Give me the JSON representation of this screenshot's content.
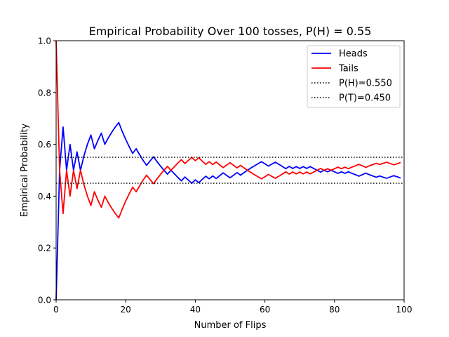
{
  "chart_data": {
    "type": "line",
    "title": "Empirical Probability Over 100 tosses, P(H) = 0.55",
    "xlabel": "Number of Flips",
    "ylabel": "Empirical Probability",
    "xlim": [
      0,
      100
    ],
    "ylim": [
      0.0,
      1.0
    ],
    "xticks": [
      "0",
      "20",
      "40",
      "60",
      "80",
      "100"
    ],
    "yticks": [
      "0.0",
      "0.2",
      "0.4",
      "0.6",
      "0.8",
      "1.0"
    ],
    "grid": false,
    "legend_position": "top-right",
    "series": [
      {
        "name": "Heads",
        "color": "#0000ff",
        "style": "solid",
        "x": [
          0,
          1,
          2,
          3,
          4,
          5,
          6,
          7,
          8,
          9,
          10,
          11,
          12,
          13,
          14,
          15,
          16,
          17,
          18,
          19,
          20,
          21,
          22,
          23,
          24,
          25,
          26,
          27,
          28,
          29,
          30,
          31,
          32,
          33,
          34,
          35,
          36,
          37,
          38,
          39,
          40,
          41,
          42,
          43,
          44,
          45,
          46,
          47,
          48,
          49,
          50,
          51,
          52,
          53,
          54,
          55,
          56,
          57,
          58,
          59,
          60,
          61,
          62,
          63,
          64,
          65,
          66,
          67,
          68,
          69,
          70,
          71,
          72,
          73,
          74,
          75,
          76,
          77,
          78,
          79,
          80,
          81,
          82,
          83,
          84,
          85,
          86,
          87,
          88,
          89,
          90,
          91,
          92,
          93,
          94,
          95,
          96,
          97,
          98,
          99
        ],
        "values": [
          0.0,
          0.5,
          0.667,
          0.5,
          0.6,
          0.5,
          0.571,
          0.5,
          0.556,
          0.6,
          0.636,
          0.583,
          0.615,
          0.643,
          0.6,
          0.625,
          0.647,
          0.667,
          0.684,
          0.65,
          0.619,
          0.591,
          0.565,
          0.583,
          0.56,
          0.538,
          0.519,
          0.536,
          0.552,
          0.533,
          0.516,
          0.5,
          0.485,
          0.5,
          0.486,
          0.472,
          0.459,
          0.474,
          0.462,
          0.45,
          0.463,
          0.452,
          0.465,
          0.477,
          0.467,
          0.478,
          0.468,
          0.479,
          0.49,
          0.48,
          0.471,
          0.481,
          0.491,
          0.481,
          0.491,
          0.5,
          0.509,
          0.517,
          0.525,
          0.533,
          0.525,
          0.516,
          0.524,
          0.531,
          0.523,
          0.515,
          0.506,
          0.515,
          0.507,
          0.514,
          0.507,
          0.514,
          0.507,
          0.514,
          0.507,
          0.5,
          0.493,
          0.5,
          0.494,
          0.5,
          0.494,
          0.488,
          0.494,
          0.488,
          0.494,
          0.488,
          0.483,
          0.477,
          0.483,
          0.489,
          0.483,
          0.478,
          0.473,
          0.478,
          0.473,
          0.469,
          0.474,
          0.479,
          0.475,
          0.47
        ]
      },
      {
        "name": "Tails",
        "color": "#ff0000",
        "style": "solid",
        "x": [
          0,
          1,
          2,
          3,
          4,
          5,
          6,
          7,
          8,
          9,
          10,
          11,
          12,
          13,
          14,
          15,
          16,
          17,
          18,
          19,
          20,
          21,
          22,
          23,
          24,
          25,
          26,
          27,
          28,
          29,
          30,
          31,
          32,
          33,
          34,
          35,
          36,
          37,
          38,
          39,
          40,
          41,
          42,
          43,
          44,
          45,
          46,
          47,
          48,
          49,
          50,
          51,
          52,
          53,
          54,
          55,
          56,
          57,
          58,
          59,
          60,
          61,
          62,
          63,
          64,
          65,
          66,
          67,
          68,
          69,
          70,
          71,
          72,
          73,
          74,
          75,
          76,
          77,
          78,
          79,
          80,
          81,
          82,
          83,
          84,
          85,
          86,
          87,
          88,
          89,
          90,
          91,
          92,
          93,
          94,
          95,
          96,
          97,
          98,
          99
        ],
        "values": [
          1.0,
          0.5,
          0.333,
          0.5,
          0.4,
          0.5,
          0.429,
          0.5,
          0.444,
          0.4,
          0.364,
          0.417,
          0.385,
          0.357,
          0.4,
          0.375,
          0.353,
          0.333,
          0.316,
          0.35,
          0.381,
          0.409,
          0.435,
          0.417,
          0.44,
          0.462,
          0.481,
          0.464,
          0.448,
          0.467,
          0.484,
          0.5,
          0.515,
          0.5,
          0.514,
          0.528,
          0.541,
          0.526,
          0.538,
          0.55,
          0.537,
          0.548,
          0.535,
          0.523,
          0.533,
          0.522,
          0.532,
          0.521,
          0.51,
          0.52,
          0.529,
          0.519,
          0.509,
          0.519,
          0.509,
          0.5,
          0.491,
          0.483,
          0.475,
          0.467,
          0.475,
          0.484,
          0.476,
          0.469,
          0.477,
          0.485,
          0.494,
          0.485,
          0.493,
          0.486,
          0.493,
          0.486,
          0.493,
          0.486,
          0.493,
          0.5,
          0.507,
          0.5,
          0.506,
          0.5,
          0.506,
          0.512,
          0.506,
          0.512,
          0.506,
          0.512,
          0.517,
          0.523,
          0.517,
          0.511,
          0.517,
          0.522,
          0.527,
          0.522,
          0.527,
          0.531,
          0.526,
          0.521,
          0.525,
          0.53
        ]
      },
      {
        "name": "P(H)=0.550",
        "color": "#000000",
        "style": "dotted",
        "x": [
          0,
          100
        ],
        "values": [
          0.55,
          0.55
        ]
      },
      {
        "name": "P(T)=0.450",
        "color": "#000000",
        "style": "dotted",
        "x": [
          0,
          100
        ],
        "values": [
          0.45,
          0.45
        ]
      }
    ]
  }
}
